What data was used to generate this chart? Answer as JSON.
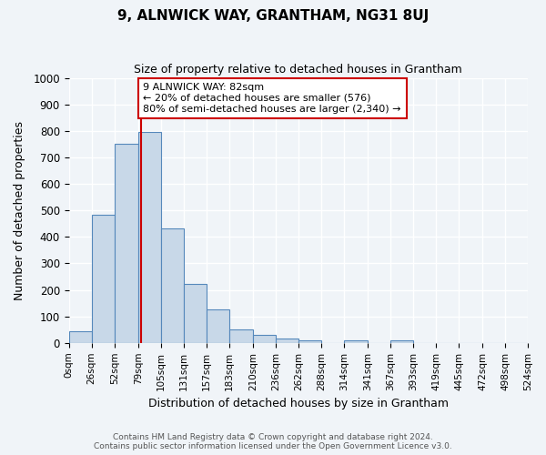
{
  "title": "9, ALNWICK WAY, GRANTHAM, NG31 8UJ",
  "subtitle": "Size of property relative to detached houses in Grantham",
  "xlabel": "Distribution of detached houses by size in Grantham",
  "ylabel": "Number of detached properties",
  "footer_lines": [
    "Contains HM Land Registry data © Crown copyright and database right 2024.",
    "Contains public sector information licensed under the Open Government Licence v3.0."
  ],
  "bin_labels": [
    "0sqm",
    "26sqm",
    "52sqm",
    "79sqm",
    "105sqm",
    "131sqm",
    "157sqm",
    "183sqm",
    "210sqm",
    "236sqm",
    "262sqm",
    "288sqm",
    "314sqm",
    "341sqm",
    "367sqm",
    "393sqm",
    "419sqm",
    "445sqm",
    "472sqm",
    "498sqm",
    "524sqm"
  ],
  "bar_values": [
    45,
    485,
    750,
    795,
    433,
    222,
    128,
    50,
    30,
    15,
    10,
    0,
    8,
    0,
    10,
    0,
    0,
    0,
    0,
    0
  ],
  "bar_color": "#c8d8e8",
  "bar_edge_color": "#5588bb",
  "ylim": [
    0,
    1000
  ],
  "yticks": [
    0,
    100,
    200,
    300,
    400,
    500,
    600,
    700,
    800,
    900,
    1000
  ],
  "property_value": 82,
  "property_line_color": "#cc0000",
  "annotation_text": "9 ALNWICK WAY: 82sqm\n← 20% of detached houses are smaller (576)\n80% of semi-detached houses are larger (2,340) →",
  "annotation_box_color": "#ffffff",
  "annotation_border_color": "#cc0000",
  "bg_color": "#f0f4f8",
  "grid_color": "#ffffff",
  "bin_edges": [
    0,
    26,
    52,
    79,
    105,
    131,
    157,
    183,
    210,
    236,
    262,
    288,
    314,
    341,
    367,
    393,
    419,
    445,
    472,
    498,
    524
  ]
}
